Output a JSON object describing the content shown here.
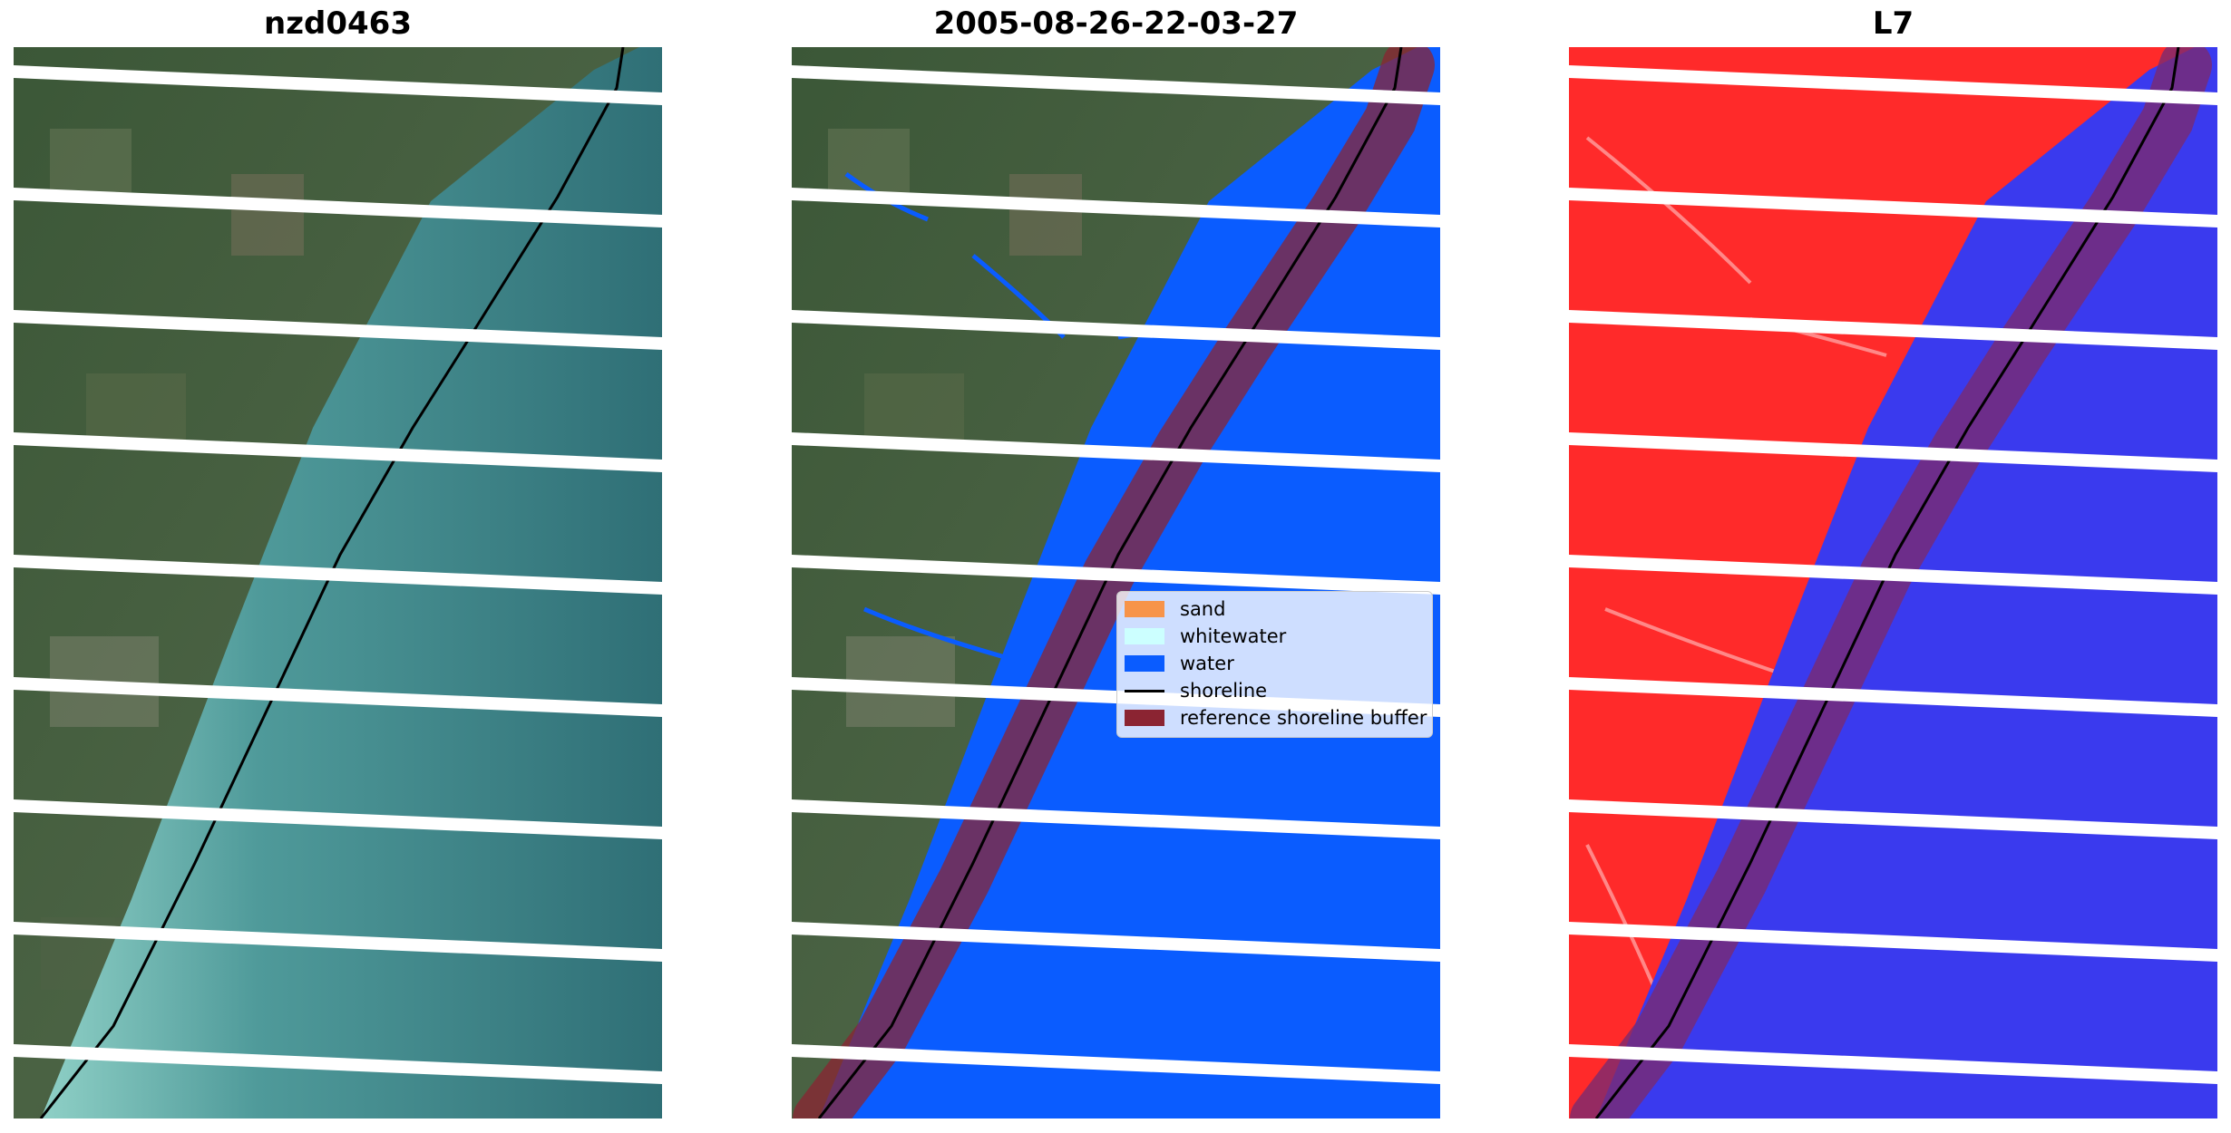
{
  "panels": [
    {
      "title": "nzd0463"
    },
    {
      "title": "2005-08-26-22-03-27"
    },
    {
      "title": "L7"
    }
  ],
  "legend": {
    "items": [
      {
        "label": "sand",
        "color": "#f7944a"
      },
      {
        "label": "whitewater",
        "color": "#ccffff"
      },
      {
        "label": "water",
        "color": "#0a5cff"
      },
      {
        "label": "shoreline",
        "color": "#000000"
      },
      {
        "label": "reference shoreline buffer",
        "color": "#8b2432"
      }
    ]
  },
  "colors": {
    "land_rgb": "#3f5a3a",
    "sea_rgb": "#3f8f8f",
    "land_index": "#ff2a2a",
    "sea_index": "#3a3aee",
    "scanline_gap": "#ffffff"
  }
}
